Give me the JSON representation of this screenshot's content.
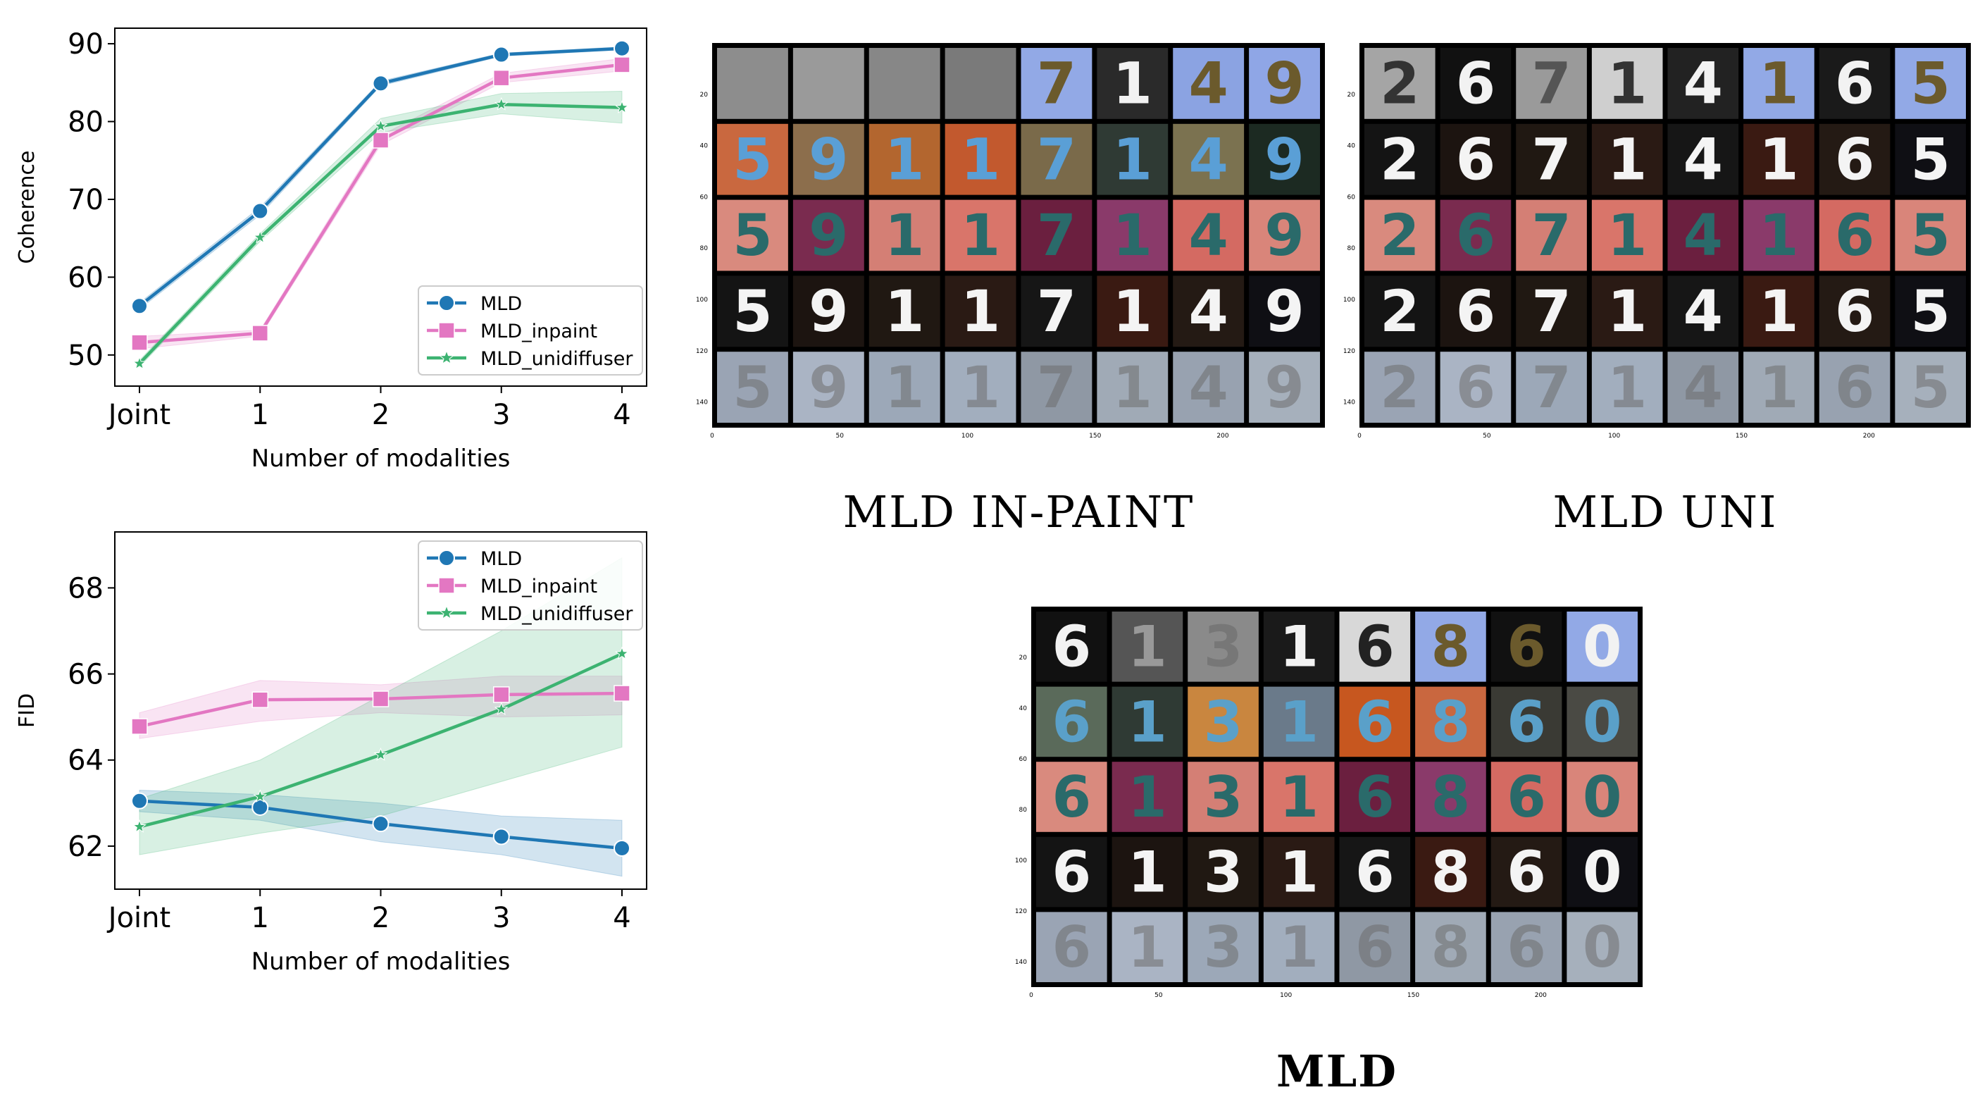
{
  "chart_data": [
    {
      "type": "line",
      "xlabel": "Number of modalities",
      "ylabel": "Coherence",
      "categories": [
        "Joint",
        "1",
        "2",
        "3",
        "4"
      ],
      "ylim": [
        46,
        92
      ],
      "yticks": [
        50,
        60,
        70,
        80,
        90
      ],
      "legend_position": "bottom-right",
      "series": [
        {
          "name": "MLD",
          "marker": "circle",
          "color": "#1f77b4",
          "values": [
            56.3,
            68.5,
            84.9,
            88.6,
            89.4
          ],
          "band_low": [
            55.9,
            68.0,
            84.6,
            88.4,
            89.2
          ],
          "band_high": [
            56.7,
            69.0,
            85.2,
            88.8,
            89.6
          ]
        },
        {
          "name": "MLD_inpaint",
          "marker": "square",
          "color": "#e377c2",
          "values": [
            51.6,
            52.8,
            77.6,
            85.6,
            87.3
          ],
          "band_low": [
            50.8,
            52.4,
            77.0,
            85.0,
            86.5
          ],
          "band_high": [
            52.4,
            53.2,
            78.2,
            86.2,
            88.1
          ]
        },
        {
          "name": "MLD_unidiffuser",
          "marker": "star",
          "color": "#3cb371",
          "values": [
            48.9,
            65.1,
            79.4,
            82.2,
            81.8
          ],
          "band_low": [
            48.5,
            64.6,
            78.6,
            81.0,
            79.8
          ],
          "band_high": [
            49.3,
            65.6,
            80.4,
            83.6,
            83.9
          ]
        }
      ]
    },
    {
      "type": "line",
      "xlabel": "Number of modalities",
      "ylabel": "FID",
      "categories": [
        "Joint",
        "1",
        "2",
        "3",
        "4"
      ],
      "ylim": [
        61.0,
        69.3
      ],
      "yticks": [
        62,
        64,
        66,
        68
      ],
      "legend_position": "top-right",
      "series": [
        {
          "name": "MLD",
          "marker": "circle",
          "color": "#1f77b4",
          "values": [
            63.05,
            62.9,
            62.52,
            62.22,
            61.95
          ],
          "band_low": [
            62.8,
            62.6,
            62.1,
            61.8,
            61.3
          ],
          "band_high": [
            63.3,
            63.2,
            63.0,
            62.7,
            62.6
          ]
        },
        {
          "name": "MLD_inpaint",
          "marker": "square",
          "color": "#e377c2",
          "values": [
            64.78,
            65.4,
            65.42,
            65.52,
            65.55
          ],
          "band_low": [
            64.5,
            64.9,
            65.1,
            65.0,
            65.05
          ],
          "band_high": [
            65.1,
            65.85,
            65.75,
            65.95,
            65.95
          ]
        },
        {
          "name": "MLD_unidiffuser",
          "marker": "star",
          "color": "#3cb371",
          "values": [
            62.45,
            63.15,
            64.12,
            65.18,
            66.47
          ],
          "band_low": [
            61.8,
            62.3,
            62.7,
            63.5,
            64.3
          ],
          "band_high": [
            63.1,
            64.0,
            65.5,
            67.0,
            68.7
          ]
        }
      ]
    }
  ],
  "sample_grids": [
    {
      "caption": "MLD IN-PAINT",
      "x_ticks": [
        "0",
        "50",
        "100",
        "150",
        "200"
      ],
      "y_ticks": [
        "20",
        "40",
        "60",
        "80",
        "100",
        "120",
        "140"
      ],
      "digits": [
        "5",
        "9",
        "1",
        "1",
        "7",
        "1",
        "4",
        "9"
      ],
      "row_themes": [
        "gray",
        "orange",
        "pink",
        "dark",
        "ghost"
      ],
      "first_row_bg": [
        "#8d8d8d",
        "#9a9a9a",
        "#878787",
        "#7a7a7a",
        "#92a9e6",
        "#2a2a2a",
        "#8ba3e2",
        "#8fa6e6"
      ],
      "first_row_ink": [
        "",
        "",
        "",
        "",
        "#6b5a2c",
        "#f2f2f2",
        "#6b5a2c",
        "#6b5a2c"
      ]
    },
    {
      "caption": "MLD UNI",
      "x_ticks": [
        "0",
        "50",
        "100",
        "150",
        "200"
      ],
      "y_ticks": [
        "20",
        "40",
        "60",
        "80",
        "100",
        "120",
        "140"
      ],
      "digits": [
        "2",
        "6",
        "7",
        "1",
        "4",
        "1",
        "6",
        "5"
      ],
      "row_themes": [
        "mixed",
        "dark",
        "pink",
        "dark",
        "ghost"
      ],
      "first_row_bg": [
        "#a5a5a5",
        "#111111",
        "#9a9a9a",
        "#cfcfcf",
        "#222222",
        "#92a9e6",
        "#1a1a1a",
        "#92a9e6"
      ],
      "first_row_ink": [
        "#333333",
        "#f2f2f2",
        "#555555",
        "#333333",
        "#f2f2f2",
        "#6b5a2c",
        "#f2f2f2",
        "#6b5a2c"
      ]
    },
    {
      "caption": "MLD",
      "x_ticks": [
        "0",
        "50",
        "100",
        "150",
        "200"
      ],
      "y_ticks": [
        "20",
        "40",
        "60",
        "80",
        "100",
        "120",
        "140"
      ],
      "digits": [
        "6",
        "1",
        "3",
        "1",
        "6",
        "8",
        "6",
        "0"
      ],
      "row_themes": [
        "mixed",
        "olive",
        "pink",
        "dark",
        "ghost"
      ],
      "first_row_bg": [
        "#111111",
        "#555555",
        "#8a8a8a",
        "#1a1a1a",
        "#d8d8d8",
        "#92a9e6",
        "#111111",
        "#92a9e6"
      ],
      "first_row_ink": [
        "#f2f2f2",
        "#999999",
        "#777777",
        "#f2f2f2",
        "#222222",
        "#6b5a2c",
        "#6b5a2c",
        "#f2f2f2"
      ]
    }
  ]
}
